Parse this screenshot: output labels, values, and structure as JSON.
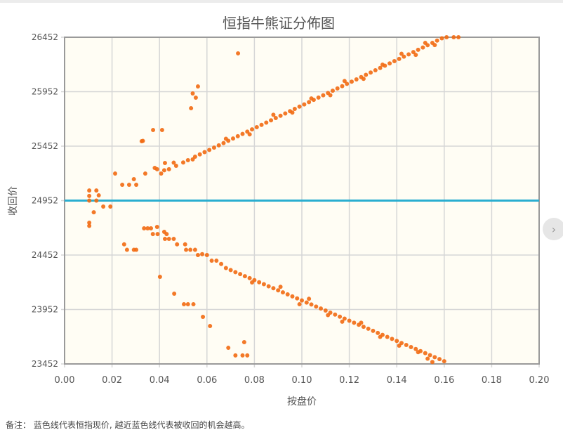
{
  "chart_data": {
    "type": "scatter",
    "title": "恒指牛熊证分佈图",
    "xlabel": "按盘价",
    "ylabel": "收回价",
    "xlim": [
      0,
      0.2
    ],
    "ylim": [
      23452,
      26452
    ],
    "xticks": [
      "0.00",
      "0.02",
      "0.04",
      "0.06",
      "0.08",
      "0.10",
      "0.12",
      "0.14",
      "0.16",
      "0.18",
      "0.20"
    ],
    "yticks": [
      "23452",
      "23952",
      "24452",
      "24952",
      "25452",
      "25952",
      "26452"
    ],
    "grid": true,
    "reference_line": {
      "y": 24952,
      "color": "#2aaed0"
    },
    "point_color": "#f26a12",
    "background_color": "#fffdf4",
    "points": [
      [
        0.0104,
        25045
      ],
      [
        0.0104,
        24995
      ],
      [
        0.0104,
        24952
      ],
      [
        0.0134,
        25045
      ],
      [
        0.0144,
        25000
      ],
      [
        0.0134,
        24952
      ],
      [
        0.0163,
        24897
      ],
      [
        0.0193,
        24897
      ],
      [
        0.0123,
        24845
      ],
      [
        0.0104,
        24749
      ],
      [
        0.0104,
        24720
      ],
      [
        0.0213,
        25200
      ],
      [
        0.0243,
        25097
      ],
      [
        0.0272,
        25097
      ],
      [
        0.0292,
        25149
      ],
      [
        0.0302,
        25097
      ],
      [
        0.034,
        25200
      ],
      [
        0.038,
        25252
      ],
      [
        0.039,
        25240
      ],
      [
        0.0407,
        25200
      ],
      [
        0.042,
        25230
      ],
      [
        0.0423,
        25297
      ],
      [
        0.0325,
        25497
      ],
      [
        0.033,
        25500
      ],
      [
        0.0373,
        25600
      ],
      [
        0.0411,
        25600
      ],
      [
        0.0533,
        25800
      ],
      [
        0.054,
        25936
      ],
      [
        0.0553,
        25897
      ],
      [
        0.0562,
        26000
      ],
      [
        0.0731,
        26304
      ],
      [
        0.044,
        25240
      ],
      [
        0.047,
        25271
      ],
      [
        0.05,
        25302
      ],
      [
        0.052,
        25323
      ],
      [
        0.055,
        25355
      ],
      [
        0.057,
        25376
      ],
      [
        0.059,
        25397
      ],
      [
        0.061,
        25417
      ],
      [
        0.063,
        25438
      ],
      [
        0.065,
        25459
      ],
      [
        0.067,
        25480
      ],
      [
        0.069,
        25501
      ],
      [
        0.071,
        25522
      ],
      [
        0.073,
        25543
      ],
      [
        0.075,
        25564
      ],
      [
        0.077,
        25585
      ],
      [
        0.079,
        25606
      ],
      [
        0.081,
        25626
      ],
      [
        0.083,
        25647
      ],
      [
        0.085,
        25668
      ],
      [
        0.087,
        25689
      ],
      [
        0.089,
        25710
      ],
      [
        0.091,
        25731
      ],
      [
        0.093,
        25752
      ],
      [
        0.095,
        25773
      ],
      [
        0.097,
        25794
      ],
      [
        0.099,
        25815
      ],
      [
        0.101,
        25835
      ],
      [
        0.103,
        25856
      ],
      [
        0.105,
        25877
      ],
      [
        0.107,
        25898
      ],
      [
        0.109,
        25919
      ],
      [
        0.111,
        25940
      ],
      [
        0.113,
        25961
      ],
      [
        0.115,
        25982
      ],
      [
        0.117,
        26003
      ],
      [
        0.119,
        26024
      ],
      [
        0.121,
        26044
      ],
      [
        0.123,
        26065
      ],
      [
        0.125,
        26086
      ],
      [
        0.127,
        26107
      ],
      [
        0.129,
        26128
      ],
      [
        0.131,
        26149
      ],
      [
        0.133,
        26170
      ],
      [
        0.135,
        26191
      ],
      [
        0.137,
        26212
      ],
      [
        0.139,
        26233
      ],
      [
        0.141,
        26253
      ],
      [
        0.143,
        26274
      ],
      [
        0.145,
        26295
      ],
      [
        0.147,
        26316
      ],
      [
        0.149,
        26337
      ],
      [
        0.151,
        26358
      ],
      [
        0.153,
        26379
      ],
      [
        0.155,
        26400
      ],
      [
        0.157,
        26421
      ],
      [
        0.159,
        26442
      ],
      [
        0.161,
        26452
      ],
      [
        0.164,
        26452
      ],
      [
        0.166,
        26452
      ],
      [
        0.046,
        25300
      ],
      [
        0.054,
        25330
      ],
      [
        0.068,
        25520
      ],
      [
        0.078,
        25560
      ],
      [
        0.088,
        25740
      ],
      [
        0.096,
        25760
      ],
      [
        0.104,
        25890
      ],
      [
        0.112,
        25920
      ],
      [
        0.118,
        26050
      ],
      [
        0.126,
        26070
      ],
      [
        0.134,
        26200
      ],
      [
        0.142,
        26300
      ],
      [
        0.148,
        26290
      ],
      [
        0.152,
        26400
      ],
      [
        0.156,
        26380
      ],
      [
        0.0335,
        24697
      ],
      [
        0.035,
        24697
      ],
      [
        0.0364,
        24697
      ],
      [
        0.039,
        24710
      ],
      [
        0.0372,
        24645
      ],
      [
        0.0392,
        24645
      ],
      [
        0.042,
        24665
      ],
      [
        0.043,
        24645
      ],
      [
        0.0423,
        24600
      ],
      [
        0.044,
        24600
      ],
      [
        0.046,
        24600
      ],
      [
        0.0474,
        24550
      ],
      [
        0.0508,
        24550
      ],
      [
        0.0512,
        24500
      ],
      [
        0.053,
        24500
      ],
      [
        0.055,
        24500
      ],
      [
        0.0562,
        24452
      ],
      [
        0.058,
        24460
      ],
      [
        0.06,
        24452
      ],
      [
        0.062,
        24400
      ],
      [
        0.064,
        24400
      ],
      [
        0.066,
        24370
      ],
      [
        0.0251,
        24550
      ],
      [
        0.0263,
        24500
      ],
      [
        0.0292,
        24500
      ],
      [
        0.0302,
        24500
      ],
      [
        0.0402,
        24252
      ],
      [
        0.0462,
        24097
      ],
      [
        0.0503,
        24000
      ],
      [
        0.052,
        24000
      ],
      [
        0.0543,
        24000
      ],
      [
        0.0583,
        23884
      ],
      [
        0.0613,
        23800
      ],
      [
        0.069,
        23600
      ],
      [
        0.0757,
        23652
      ],
      [
        0.072,
        23530
      ],
      [
        0.075,
        23530
      ],
      [
        0.077,
        23530
      ],
      [
        0.068,
        24333
      ],
      [
        0.07,
        24314
      ],
      [
        0.072,
        24295
      ],
      [
        0.074,
        24277
      ],
      [
        0.076,
        24258
      ],
      [
        0.078,
        24240
      ],
      [
        0.08,
        24221
      ],
      [
        0.082,
        24202
      ],
      [
        0.084,
        24184
      ],
      [
        0.086,
        24165
      ],
      [
        0.088,
        24147
      ],
      [
        0.09,
        24128
      ],
      [
        0.092,
        24109
      ],
      [
        0.094,
        24091
      ],
      [
        0.096,
        24072
      ],
      [
        0.098,
        24054
      ],
      [
        0.1,
        24035
      ],
      [
        0.102,
        24016
      ],
      [
        0.104,
        23998
      ],
      [
        0.106,
        23979
      ],
      [
        0.108,
        23961
      ],
      [
        0.11,
        23942
      ],
      [
        0.112,
        23923
      ],
      [
        0.114,
        23905
      ],
      [
        0.116,
        23886
      ],
      [
        0.118,
        23868
      ],
      [
        0.12,
        23849
      ],
      [
        0.122,
        23830
      ],
      [
        0.124,
        23812
      ],
      [
        0.126,
        23793
      ],
      [
        0.128,
        23775
      ],
      [
        0.13,
        23756
      ],
      [
        0.132,
        23737
      ],
      [
        0.134,
        23719
      ],
      [
        0.136,
        23700
      ],
      [
        0.138,
        23682
      ],
      [
        0.14,
        23663
      ],
      [
        0.142,
        23644
      ],
      [
        0.144,
        23626
      ],
      [
        0.146,
        23607
      ],
      [
        0.148,
        23589
      ],
      [
        0.15,
        23570
      ],
      [
        0.152,
        23551
      ],
      [
        0.154,
        23533
      ],
      [
        0.156,
        23514
      ],
      [
        0.158,
        23496
      ],
      [
        0.16,
        23477
      ],
      [
        0.079,
        24200
      ],
      [
        0.091,
        24160
      ],
      [
        0.099,
        24000
      ],
      [
        0.103,
        24050
      ],
      [
        0.111,
        23900
      ],
      [
        0.117,
        23840
      ],
      [
        0.125,
        23830
      ],
      [
        0.133,
        23700
      ],
      [
        0.141,
        23620
      ],
      [
        0.149,
        23560
      ],
      [
        0.153,
        23500
      ],
      [
        0.155,
        23470
      ]
    ]
  },
  "note": "备注：  蓝色线代表恒指现价, 越近蓝色线代表被收回的机会越高。",
  "next_button": {
    "icon": "chevron-right-icon",
    "label": "›"
  }
}
